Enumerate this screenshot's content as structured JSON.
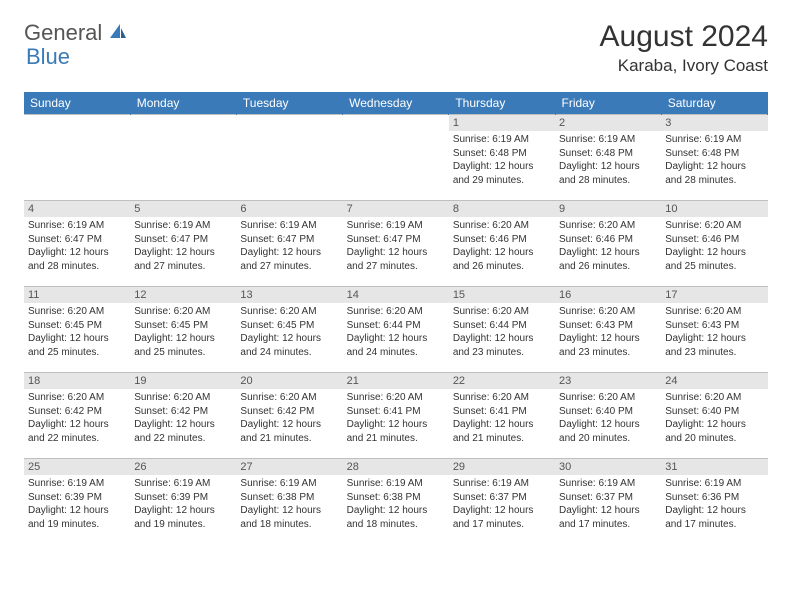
{
  "logo": {
    "part1": "General",
    "part2": "Blue"
  },
  "title": "August 2024",
  "location": "Karaba, Ivory Coast",
  "colors": {
    "header_bg": "#3a7ab8",
    "header_text": "#ffffff",
    "daynum_bg": "#e6e6e6",
    "border": "#bfbfbf",
    "text": "#333333"
  },
  "weekdays": [
    "Sunday",
    "Monday",
    "Tuesday",
    "Wednesday",
    "Thursday",
    "Friday",
    "Saturday"
  ],
  "cells": [
    {
      "n": "",
      "sr": "",
      "ss": "",
      "dl": "",
      "empty": true
    },
    {
      "n": "",
      "sr": "",
      "ss": "",
      "dl": "",
      "empty": true
    },
    {
      "n": "",
      "sr": "",
      "ss": "",
      "dl": "",
      "empty": true
    },
    {
      "n": "",
      "sr": "",
      "ss": "",
      "dl": "",
      "empty": true
    },
    {
      "n": "1",
      "sr": "Sunrise: 6:19 AM",
      "ss": "Sunset: 6:48 PM",
      "dl": "Daylight: 12 hours and 29 minutes."
    },
    {
      "n": "2",
      "sr": "Sunrise: 6:19 AM",
      "ss": "Sunset: 6:48 PM",
      "dl": "Daylight: 12 hours and 28 minutes."
    },
    {
      "n": "3",
      "sr": "Sunrise: 6:19 AM",
      "ss": "Sunset: 6:48 PM",
      "dl": "Daylight: 12 hours and 28 minutes."
    },
    {
      "n": "4",
      "sr": "Sunrise: 6:19 AM",
      "ss": "Sunset: 6:47 PM",
      "dl": "Daylight: 12 hours and 28 minutes."
    },
    {
      "n": "5",
      "sr": "Sunrise: 6:19 AM",
      "ss": "Sunset: 6:47 PM",
      "dl": "Daylight: 12 hours and 27 minutes."
    },
    {
      "n": "6",
      "sr": "Sunrise: 6:19 AM",
      "ss": "Sunset: 6:47 PM",
      "dl": "Daylight: 12 hours and 27 minutes."
    },
    {
      "n": "7",
      "sr": "Sunrise: 6:19 AM",
      "ss": "Sunset: 6:47 PM",
      "dl": "Daylight: 12 hours and 27 minutes."
    },
    {
      "n": "8",
      "sr": "Sunrise: 6:20 AM",
      "ss": "Sunset: 6:46 PM",
      "dl": "Daylight: 12 hours and 26 minutes."
    },
    {
      "n": "9",
      "sr": "Sunrise: 6:20 AM",
      "ss": "Sunset: 6:46 PM",
      "dl": "Daylight: 12 hours and 26 minutes."
    },
    {
      "n": "10",
      "sr": "Sunrise: 6:20 AM",
      "ss": "Sunset: 6:46 PM",
      "dl": "Daylight: 12 hours and 25 minutes."
    },
    {
      "n": "11",
      "sr": "Sunrise: 6:20 AM",
      "ss": "Sunset: 6:45 PM",
      "dl": "Daylight: 12 hours and 25 minutes."
    },
    {
      "n": "12",
      "sr": "Sunrise: 6:20 AM",
      "ss": "Sunset: 6:45 PM",
      "dl": "Daylight: 12 hours and 25 minutes."
    },
    {
      "n": "13",
      "sr": "Sunrise: 6:20 AM",
      "ss": "Sunset: 6:45 PM",
      "dl": "Daylight: 12 hours and 24 minutes."
    },
    {
      "n": "14",
      "sr": "Sunrise: 6:20 AM",
      "ss": "Sunset: 6:44 PM",
      "dl": "Daylight: 12 hours and 24 minutes."
    },
    {
      "n": "15",
      "sr": "Sunrise: 6:20 AM",
      "ss": "Sunset: 6:44 PM",
      "dl": "Daylight: 12 hours and 23 minutes."
    },
    {
      "n": "16",
      "sr": "Sunrise: 6:20 AM",
      "ss": "Sunset: 6:43 PM",
      "dl": "Daylight: 12 hours and 23 minutes."
    },
    {
      "n": "17",
      "sr": "Sunrise: 6:20 AM",
      "ss": "Sunset: 6:43 PM",
      "dl": "Daylight: 12 hours and 23 minutes."
    },
    {
      "n": "18",
      "sr": "Sunrise: 6:20 AM",
      "ss": "Sunset: 6:42 PM",
      "dl": "Daylight: 12 hours and 22 minutes."
    },
    {
      "n": "19",
      "sr": "Sunrise: 6:20 AM",
      "ss": "Sunset: 6:42 PM",
      "dl": "Daylight: 12 hours and 22 minutes."
    },
    {
      "n": "20",
      "sr": "Sunrise: 6:20 AM",
      "ss": "Sunset: 6:42 PM",
      "dl": "Daylight: 12 hours and 21 minutes."
    },
    {
      "n": "21",
      "sr": "Sunrise: 6:20 AM",
      "ss": "Sunset: 6:41 PM",
      "dl": "Daylight: 12 hours and 21 minutes."
    },
    {
      "n": "22",
      "sr": "Sunrise: 6:20 AM",
      "ss": "Sunset: 6:41 PM",
      "dl": "Daylight: 12 hours and 21 minutes."
    },
    {
      "n": "23",
      "sr": "Sunrise: 6:20 AM",
      "ss": "Sunset: 6:40 PM",
      "dl": "Daylight: 12 hours and 20 minutes."
    },
    {
      "n": "24",
      "sr": "Sunrise: 6:20 AM",
      "ss": "Sunset: 6:40 PM",
      "dl": "Daylight: 12 hours and 20 minutes."
    },
    {
      "n": "25",
      "sr": "Sunrise: 6:19 AM",
      "ss": "Sunset: 6:39 PM",
      "dl": "Daylight: 12 hours and 19 minutes."
    },
    {
      "n": "26",
      "sr": "Sunrise: 6:19 AM",
      "ss": "Sunset: 6:39 PM",
      "dl": "Daylight: 12 hours and 19 minutes."
    },
    {
      "n": "27",
      "sr": "Sunrise: 6:19 AM",
      "ss": "Sunset: 6:38 PM",
      "dl": "Daylight: 12 hours and 18 minutes."
    },
    {
      "n": "28",
      "sr": "Sunrise: 6:19 AM",
      "ss": "Sunset: 6:38 PM",
      "dl": "Daylight: 12 hours and 18 minutes."
    },
    {
      "n": "29",
      "sr": "Sunrise: 6:19 AM",
      "ss": "Sunset: 6:37 PM",
      "dl": "Daylight: 12 hours and 17 minutes."
    },
    {
      "n": "30",
      "sr": "Sunrise: 6:19 AM",
      "ss": "Sunset: 6:37 PM",
      "dl": "Daylight: 12 hours and 17 minutes."
    },
    {
      "n": "31",
      "sr": "Sunrise: 6:19 AM",
      "ss": "Sunset: 6:36 PM",
      "dl": "Daylight: 12 hours and 17 minutes."
    }
  ]
}
